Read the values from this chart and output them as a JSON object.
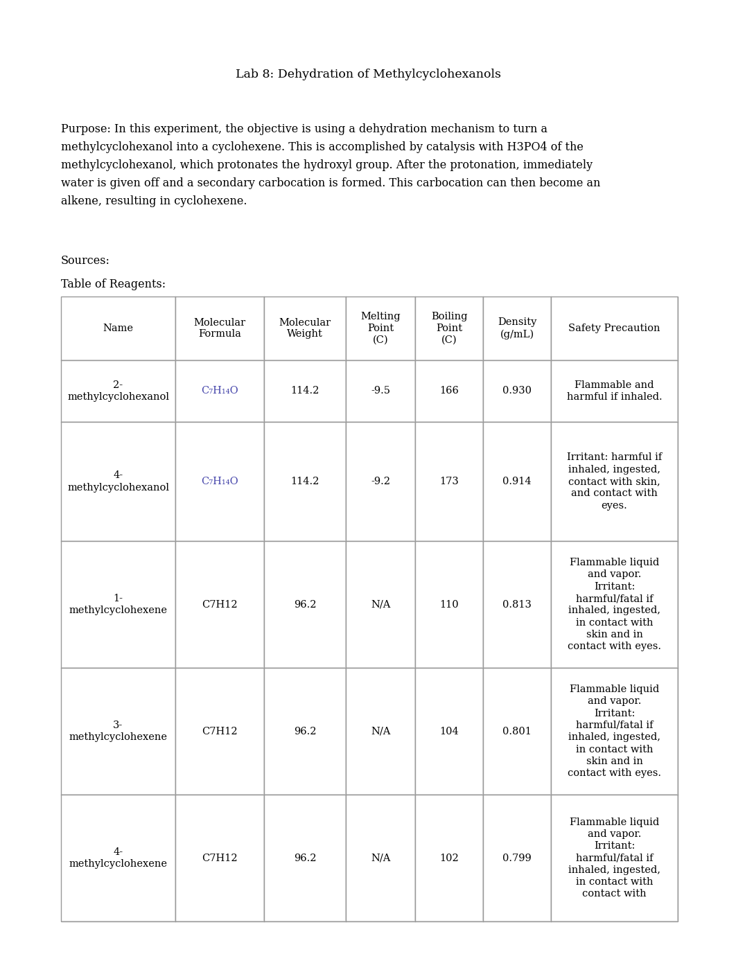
{
  "title": "Lab 8: Dehydration of Methylcyclohexanols",
  "purpose_lines": [
    "Purpose: In this experiment, the objective is using a dehydration mechanism to turn a",
    "methylcyclohexanol into a cyclohexene. This is accomplished by catalysis with H3PO4 of the",
    "methylcyclohexanol, which protonates the hydroxyl group. After the protonation, immediately",
    "water is given off and a secondary carbocation is formed. This carbocation can then become an",
    "alkene, resulting in cyclohexene."
  ],
  "sources_label": "Sources:",
  "table_label": "Table of Reagents:",
  "col_headers": [
    "Name",
    "Molecular\nFormula",
    "Molecular\nWeight",
    "Melting\nPoint\n(C)",
    "Boiling\nPoint\n(C)",
    "Density\n(g/mL)",
    "Safety Precaution"
  ],
  "rows": [
    {
      "name": "2-\nmethylcyclohexanol",
      "formula": "C₇H₁₄O",
      "formula_colored": true,
      "mol_weight": "114.2",
      "melting": "-9.5",
      "boiling": "166",
      "density": "0.930",
      "safety": "Flammable and\nharmful if inhaled."
    },
    {
      "name": "4-\nmethylcyclohexanol",
      "formula": "C₇H₁₄O",
      "formula_colored": true,
      "mol_weight": "114.2",
      "melting": "-9.2",
      "boiling": "173",
      "density": "0.914",
      "safety": "Irritant: harmful if\ninhaled, ingested,\ncontact with skin,\nand contact with\neyes."
    },
    {
      "name": "1-\nmethylcyclohexene",
      "formula": "C7H12",
      "formula_colored": false,
      "mol_weight": "96.2",
      "melting": "N/A",
      "boiling": "110",
      "density": "0.813",
      "safety": "Flammable liquid\nand vapor.\nIrritant:\nharmful/fatal if\ninhaled, ingested,\nin contact with\nskin and in\ncontact with eyes."
    },
    {
      "name": "3-\nmethylcyclohexene",
      "formula": "C7H12",
      "formula_colored": false,
      "mol_weight": "96.2",
      "melting": "N/A",
      "boiling": "104",
      "density": "0.801",
      "safety": "Flammable liquid\nand vapor.\nIrritant:\nharmful/fatal if\ninhaled, ingested,\nin contact with\nskin and in\ncontact with eyes."
    },
    {
      "name": "4-\nmethylcyclohexene",
      "formula": "C7H12",
      "formula_colored": false,
      "mol_weight": "96.2",
      "melting": "N/A",
      "boiling": "102",
      "density": "0.799",
      "safety": "Flammable liquid\nand vapor.\nIrritant:\nharmful/fatal if\ninhaled, ingested,\nin contact with\ncontact with"
    }
  ],
  "bg_color": "#ffffff",
  "cell_bg": "#ffffff",
  "table_outer_bg": "#d8d8d8",
  "formula_color": "#4444aa",
  "text_color": "#000000",
  "border_color": "#999999",
  "font_size_title": 12.5,
  "font_size_body": 11.5,
  "font_size_table": 10.5
}
